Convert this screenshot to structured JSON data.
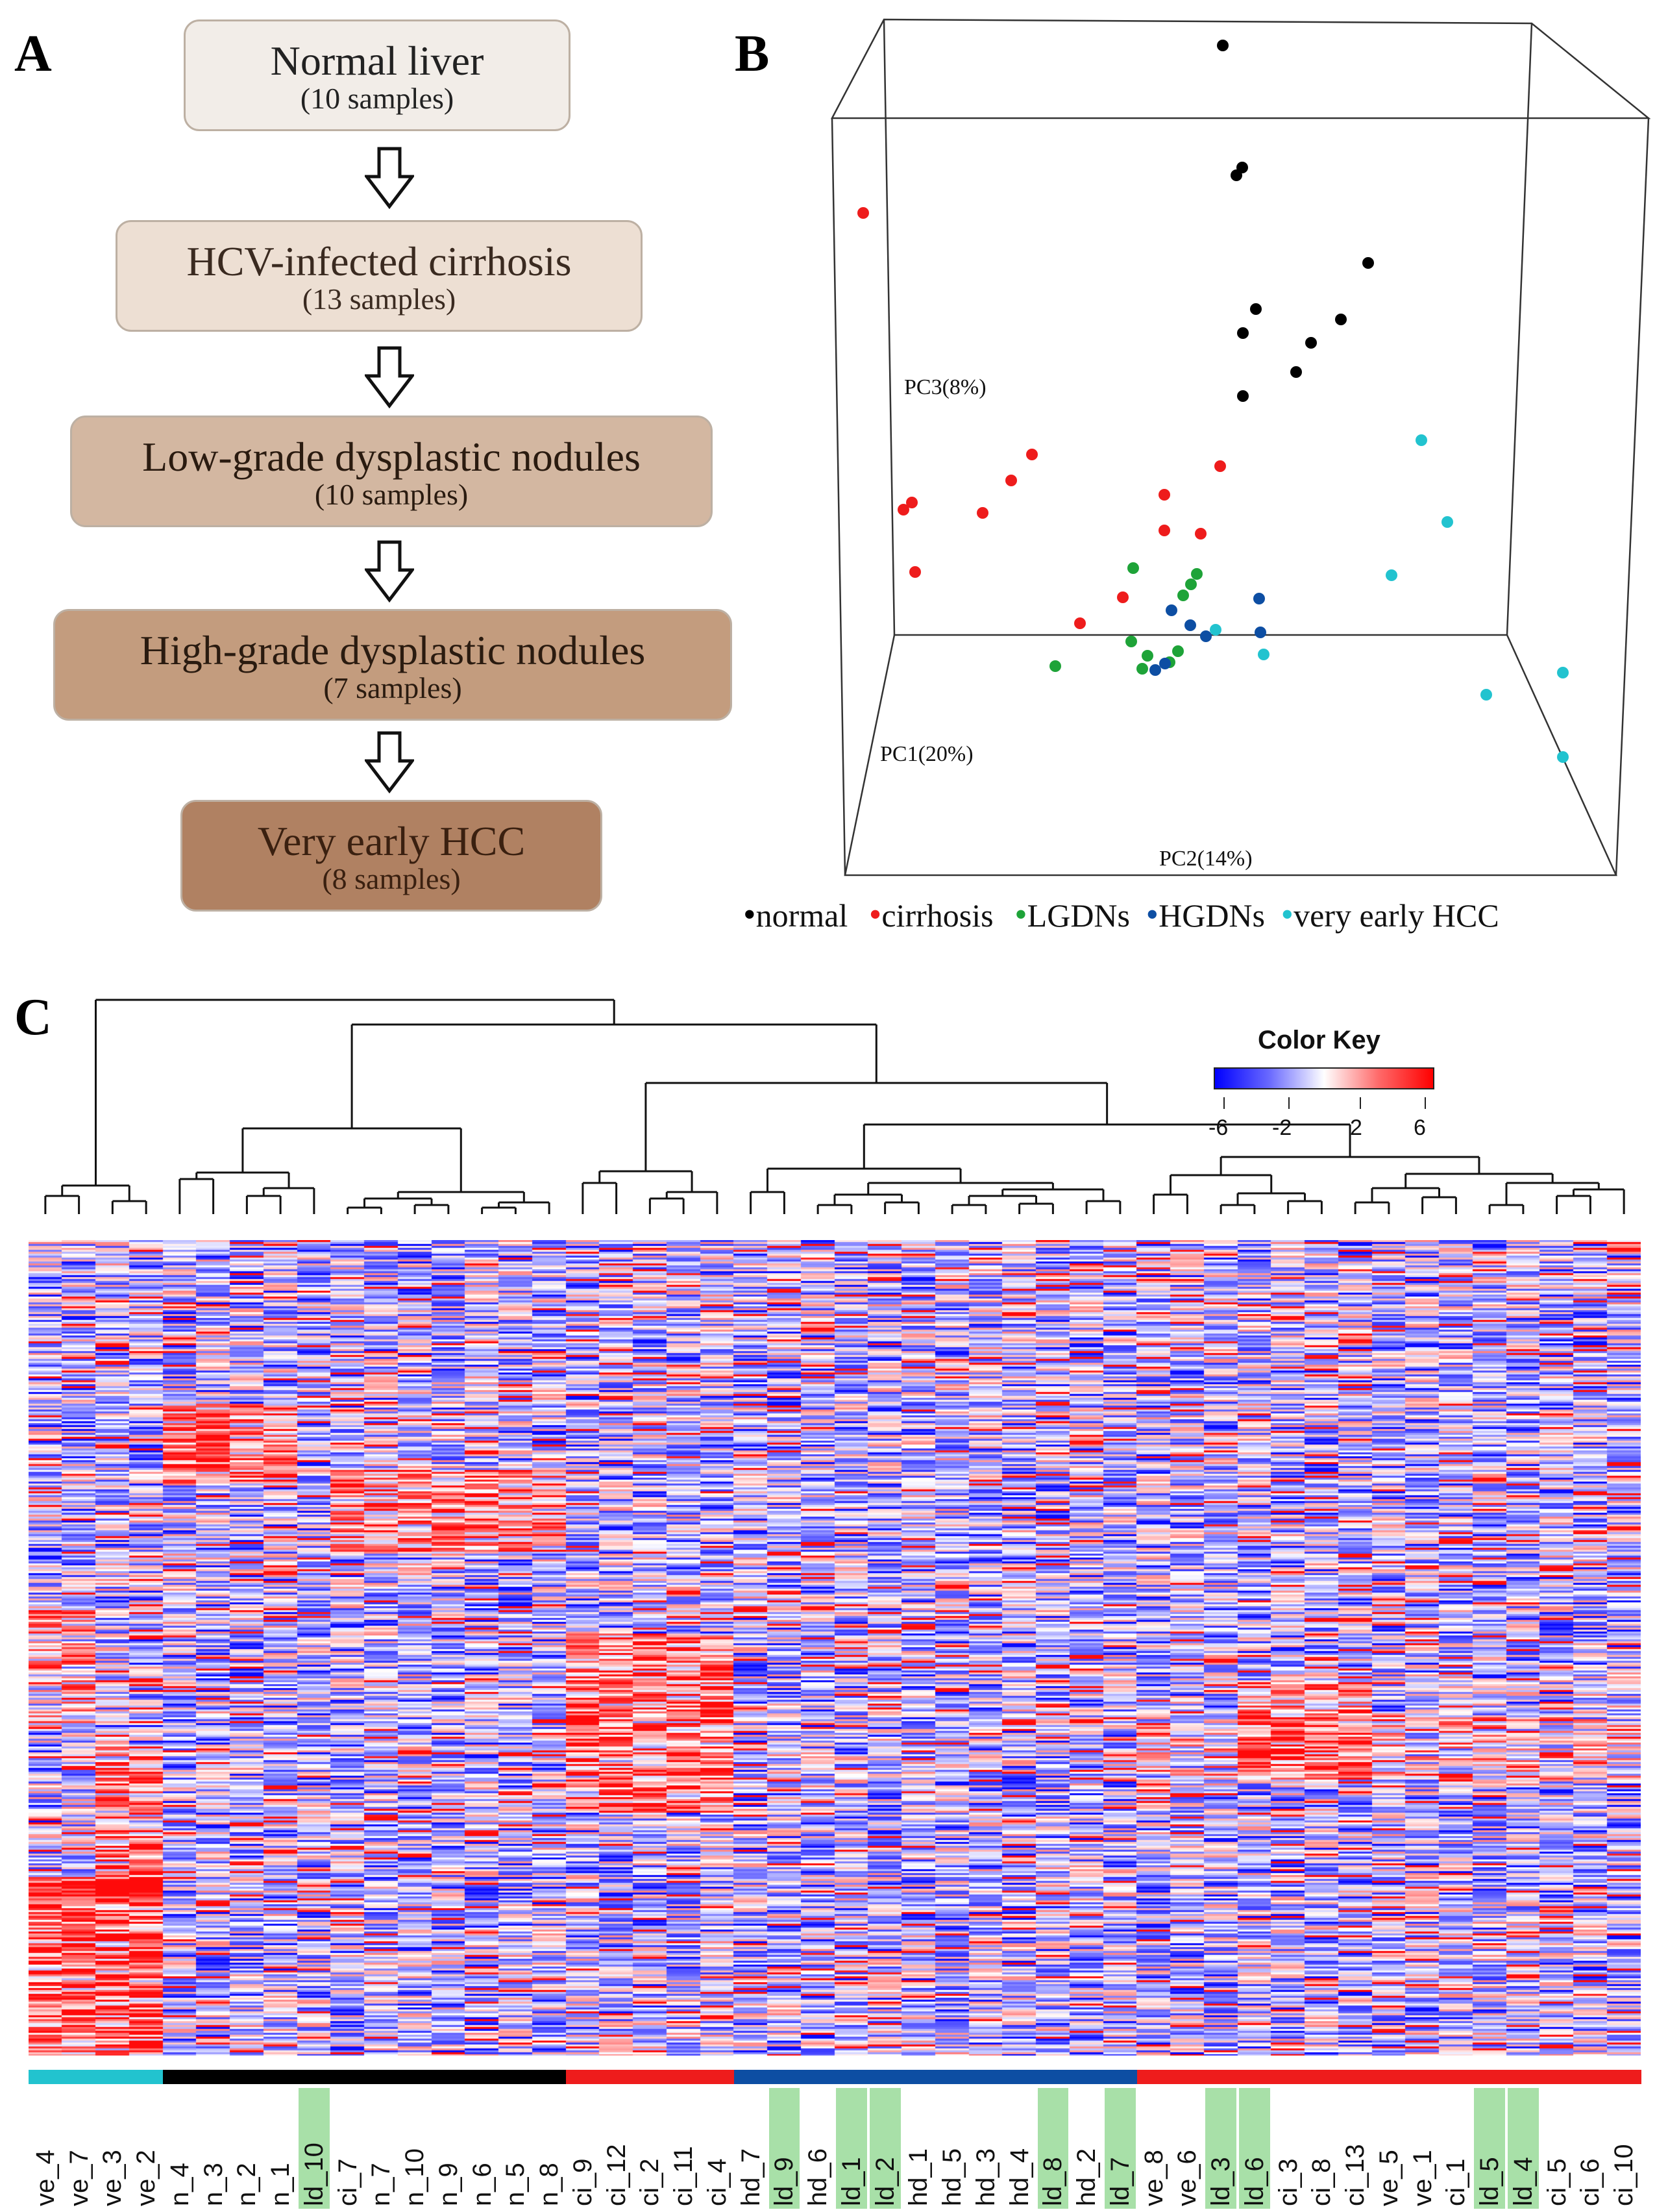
{
  "panels": {
    "a": "A",
    "b": "B",
    "c": "C"
  },
  "flow": [
    {
      "title": "Normal liver",
      "sub": "(10 samples)",
      "fill": "#f2ede8",
      "text": "#222222"
    },
    {
      "title": "HCV-infected cirrhosis",
      "sub": "(13 samples)",
      "fill": "#eddfd3",
      "text": "#3a2a20"
    },
    {
      "title": "Low-grade dysplastic nodules",
      "sub": "(10 samples)",
      "fill": "#d3b7a1",
      "text": "#2a1b10"
    },
    {
      "title": "High-grade dysplastic nodules",
      "sub": "(7 samples)",
      "fill": "#c39c7e",
      "text": "#2a1b10"
    },
    {
      "title": "Very early HCC",
      "sub": "(8 samples)",
      "fill": "#b08162",
      "text": "#3a2010"
    }
  ],
  "pca": {
    "axes": {
      "pc1": "PC1(20%)",
      "pc2": "PC2(14%)",
      "pc3": "PC3(8%)"
    },
    "legend": [
      {
        "label": "normal",
        "color": "#000000"
      },
      {
        "label": "cirrhosis",
        "color": "#ee1c1c"
      },
      {
        "label": "LGDNs",
        "color": "#1ea338"
      },
      {
        "label": "HGDNs",
        "color": "#0d4ea3"
      },
      {
        "label": "very early HCC",
        "color": "#22c3cf"
      }
    ]
  },
  "heatmap": {
    "color_key": {
      "title": "Color Key",
      "ticks": [
        "-6",
        "-2",
        "2",
        "6"
      ],
      "low": "#0000ff",
      "mid": "#ffffff",
      "high": "#ff0000"
    },
    "columns": [
      {
        "label": "ve_4",
        "group": "vehcc"
      },
      {
        "label": "ve_7",
        "group": "vehcc"
      },
      {
        "label": "ve_3",
        "group": "vehcc"
      },
      {
        "label": "ve_2",
        "group": "vehcc"
      },
      {
        "label": "n_4",
        "group": "normal"
      },
      {
        "label": "n_3",
        "group": "normal"
      },
      {
        "label": "n_2",
        "group": "normal"
      },
      {
        "label": "n_1",
        "group": "normal"
      },
      {
        "label": "ld_10",
        "group": "normal",
        "hl": true
      },
      {
        "label": "ci_7",
        "group": "normal"
      },
      {
        "label": "n_7",
        "group": "normal"
      },
      {
        "label": "n_10",
        "group": "normal"
      },
      {
        "label": "n_9",
        "group": "normal"
      },
      {
        "label": "n_6",
        "group": "normal"
      },
      {
        "label": "n_5",
        "group": "normal"
      },
      {
        "label": "n_8",
        "group": "normal"
      },
      {
        "label": "ci_9",
        "group": "cirrhosis"
      },
      {
        "label": "ci_12",
        "group": "cirrhosis"
      },
      {
        "label": "ci_2",
        "group": "cirrhosis"
      },
      {
        "label": "ci_11",
        "group": "cirrhosis"
      },
      {
        "label": "ci_4",
        "group": "cirrhosis"
      },
      {
        "label": "hd_7",
        "group": "hgdn"
      },
      {
        "label": "ld_9",
        "group": "hgdn",
        "hl": true
      },
      {
        "label": "hd_6",
        "group": "hgdn"
      },
      {
        "label": "ld_1",
        "group": "hgdn",
        "hl": true
      },
      {
        "label": "ld_2",
        "group": "hgdn",
        "hl": true
      },
      {
        "label": "hd_1",
        "group": "hgdn"
      },
      {
        "label": "hd_5",
        "group": "hgdn"
      },
      {
        "label": "hd_3",
        "group": "hgdn"
      },
      {
        "label": "hd_4",
        "group": "hgdn"
      },
      {
        "label": "ld_8",
        "group": "hgdn",
        "hl": true
      },
      {
        "label": "hd_2",
        "group": "hgdn"
      },
      {
        "label": "ld_7",
        "group": "hgdn",
        "hl": true
      },
      {
        "label": "ve_8",
        "group": "mixed"
      },
      {
        "label": "ve_6",
        "group": "mixed"
      },
      {
        "label": "ld_3",
        "group": "mixed",
        "hl": true
      },
      {
        "label": "ld_6",
        "group": "mixed",
        "hl": true
      },
      {
        "label": "ci_3",
        "group": "mixed"
      },
      {
        "label": "ci_8",
        "group": "mixed"
      },
      {
        "label": "ci_13",
        "group": "mixed"
      },
      {
        "label": "ve_5",
        "group": "mixed"
      },
      {
        "label": "ve_1",
        "group": "mixed"
      },
      {
        "label": "ci_1",
        "group": "mixed"
      },
      {
        "label": "ld_5",
        "group": "mixed",
        "hl": true
      },
      {
        "label": "ld_4",
        "group": "mixed",
        "hl": true
      },
      {
        "label": "ci_5",
        "group": "mixed"
      },
      {
        "label": "ci_6",
        "group": "mixed"
      },
      {
        "label": "ci_10",
        "group": "mixed"
      }
    ],
    "group_colors": {
      "vehcc": "#22c3cf",
      "normal": "#000000",
      "cirrhosis": "#ee1c1c",
      "hgdn": "#0d4ea3",
      "mixed": "#ee1c1c"
    },
    "highlight_color": "#a8e0a8"
  }
}
